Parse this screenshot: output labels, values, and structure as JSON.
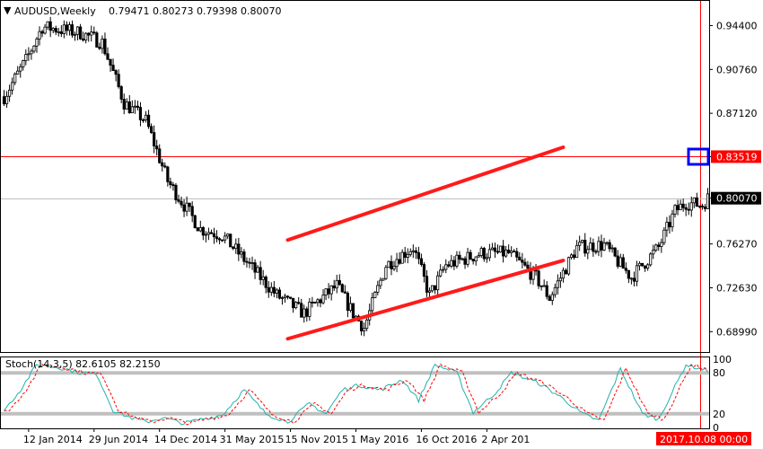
{
  "header": {
    "symbol": "AUDUSD,Weekly",
    "ohlc": "0.79471 0.80273 0.79398 0.80070"
  },
  "colors": {
    "channel": "#ff1a1a",
    "level_line": "#ff0000",
    "price_line": "#c0c0c0",
    "candle": "#000000",
    "stoch_main": "#20b2aa",
    "stoch_signal": "#ff0000",
    "box": "#0000ff",
    "time_badge": "#ff0000"
  },
  "chart_data": [
    {
      "type": "candlestick",
      "ylim": [
        0.673,
        0.963
      ],
      "y_ticks": [
        "0.94400",
        "0.90760",
        "0.87120",
        "0.83519",
        "0.80070",
        "0.76270",
        "0.72630",
        "0.68990"
      ],
      "x_ticks": [
        "12 Jan 2014",
        "29 Jun 2014",
        "14 Dec 2014",
        "31 May 2015",
        "15 Nov 2015",
        "1 May 2016",
        "16 Oct 2016",
        "2 Apr 201"
      ],
      "time_badge": "2017.10.08 00:00",
      "horizontal_lines": [
        {
          "value": 0.83519,
          "label": "0.83519",
          "style": "red"
        },
        {
          "value": 0.8007,
          "label": "0.80070",
          "style": "gray"
        }
      ],
      "channel": [
        {
          "from": [
            "2015-11-08",
            0.766
          ],
          "to": [
            "2017-10-15",
            0.843
          ]
        },
        {
          "from": [
            "2015-11-08",
            0.684
          ],
          "to": [
            "2017-10-15",
            0.749
          ]
        }
      ],
      "path_closes": [
        [
          0,
          0.885
        ],
        [
          8,
          0.915
        ],
        [
          14,
          0.943
        ],
        [
          28,
          0.938
        ],
        [
          36,
          0.93
        ],
        [
          44,
          0.88
        ],
        [
          52,
          0.865
        ],
        [
          60,
          0.815
        ],
        [
          72,
          0.775
        ],
        [
          80,
          0.77
        ],
        [
          90,
          0.745
        ],
        [
          100,
          0.72
        ],
        [
          110,
          0.705
        ],
        [
          115,
          0.715
        ],
        [
          122,
          0.728
        ],
        [
          128,
          0.705
        ],
        [
          132,
          0.693
        ],
        [
          140,
          0.745
        ],
        [
          150,
          0.76
        ],
        [
          156,
          0.72
        ],
        [
          162,
          0.745
        ],
        [
          175,
          0.755
        ],
        [
          185,
          0.755
        ],
        [
          195,
          0.735
        ],
        [
          200,
          0.718
        ],
        [
          210,
          0.76
        ],
        [
          220,
          0.762
        ],
        [
          225,
          0.748
        ],
        [
          230,
          0.735
        ],
        [
          240,
          0.76
        ],
        [
          246,
          0.79
        ],
        [
          250,
          0.797
        ],
        [
          256,
          0.795
        ],
        [
          258,
          0.8007
        ]
      ]
    },
    {
      "type": "line",
      "title": "Stoch(14,3,5) 82.6105 82.2150",
      "ylim": [
        0,
        100
      ],
      "levels": [
        80,
        20
      ],
      "y_ticks": [
        "100",
        "80",
        "20",
        "0"
      ],
      "main_path": [
        [
          0,
          25
        ],
        [
          6,
          55
        ],
        [
          12,
          92
        ],
        [
          20,
          88
        ],
        [
          28,
          80
        ],
        [
          34,
          78
        ],
        [
          40,
          25
        ],
        [
          46,
          15
        ],
        [
          52,
          8
        ],
        [
          58,
          14
        ],
        [
          66,
          6
        ],
        [
          72,
          12
        ],
        [
          80,
          18
        ],
        [
          88,
          55
        ],
        [
          96,
          20
        ],
        [
          104,
          8
        ],
        [
          112,
          35
        ],
        [
          118,
          20
        ],
        [
          124,
          55
        ],
        [
          130,
          62
        ],
        [
          138,
          55
        ],
        [
          146,
          70
        ],
        [
          152,
          40
        ],
        [
          158,
          92
        ],
        [
          166,
          80
        ],
        [
          172,
          22
        ],
        [
          180,
          50
        ],
        [
          186,
          80
        ],
        [
          196,
          65
        ],
        [
          204,
          45
        ],
        [
          212,
          20
        ],
        [
          218,
          10
        ],
        [
          226,
          86
        ],
        [
          234,
          20
        ],
        [
          240,
          12
        ],
        [
          250,
          92
        ],
        [
          258,
          83
        ]
      ]
    }
  ]
}
